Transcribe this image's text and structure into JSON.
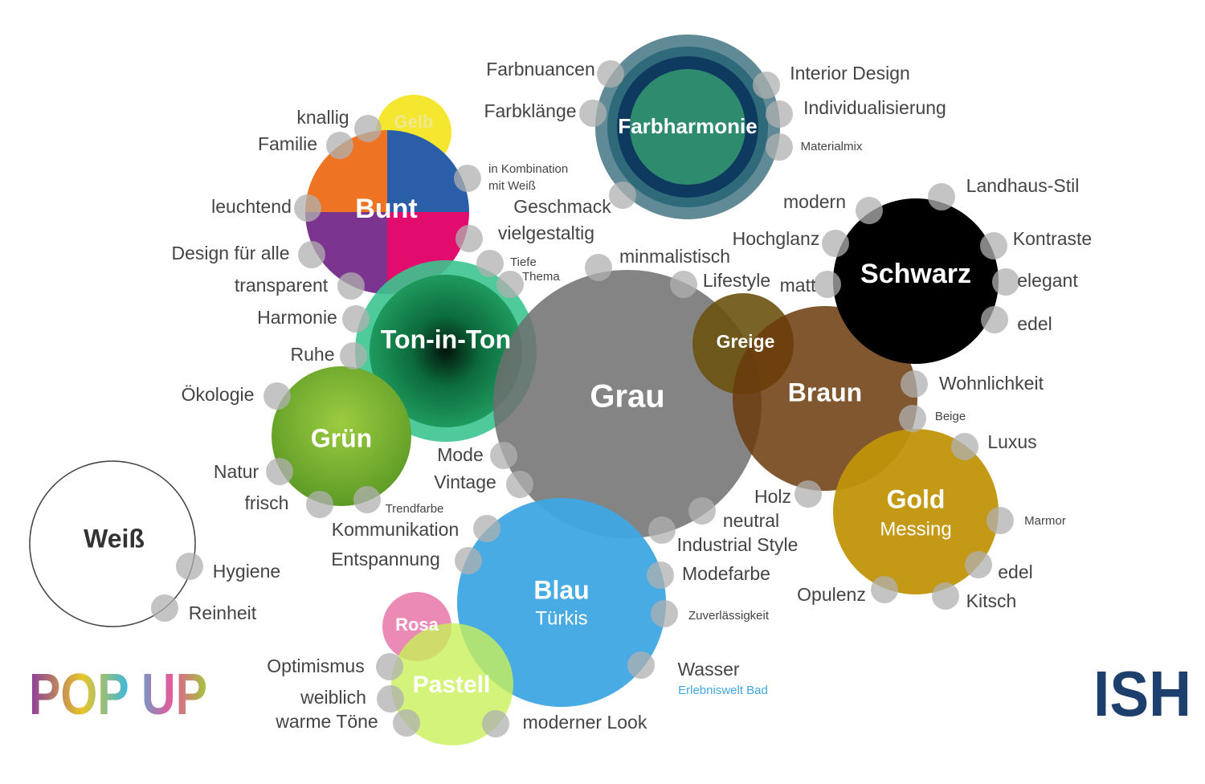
{
  "bubbles": [
    {
      "label": "Farbharmonie"
    },
    {
      "label": "Gelb"
    },
    {
      "label": "Bunt"
    },
    {
      "label": "Ton-in-Ton"
    },
    {
      "label": "Grün"
    },
    {
      "label": "Grau"
    },
    {
      "label": "Greige"
    },
    {
      "label": "Braun"
    },
    {
      "label": "Schwarz"
    },
    {
      "label": "Gold",
      "sublabel": "Messing"
    },
    {
      "label": "Blau",
      "sublabel": "Türkis"
    },
    {
      "label": "Rosa"
    },
    {
      "label": "Pastell"
    },
    {
      "label": "Weiß"
    }
  ],
  "keywords": [
    "Farbnuancen",
    "Farbklänge",
    "Interior Design",
    "Individualisierung",
    "Materialmix",
    "knallig",
    "Familie",
    "in Kombination",
    "mit Weiß",
    "Geschmack",
    "leuchtend",
    "vielgestaltig",
    "Design für alle",
    "Tiefe",
    "Thema",
    "minmalistisch",
    "transparent",
    "Lifestyle",
    "matt",
    "Harmonie",
    "Ruhe",
    "modern",
    "Landhaus-Stil",
    "Hochglanz",
    "Kontraste",
    "elegant",
    "edel",
    "Ökologie",
    "Wohnlichkeit",
    "Beige",
    "Luxus",
    "Mode",
    "Vintage",
    "Natur",
    "frisch",
    "Trendfarbe",
    "Holz",
    "neutral",
    "Industrial Style",
    "Kommunikation",
    "Entspannung",
    "Marmor",
    "Modefarbe",
    "Hygiene",
    "edel",
    "Opulenz",
    "Kitsch",
    "Reinheit",
    "Zuverlässigkeit",
    "Optimismus",
    "Wasser",
    "weiblich",
    "warme Töne",
    "moderner Look"
  ],
  "footnote": "Erlebniswelt Bad",
  "logos": {
    "left": "POP UP",
    "right": "ISH"
  }
}
